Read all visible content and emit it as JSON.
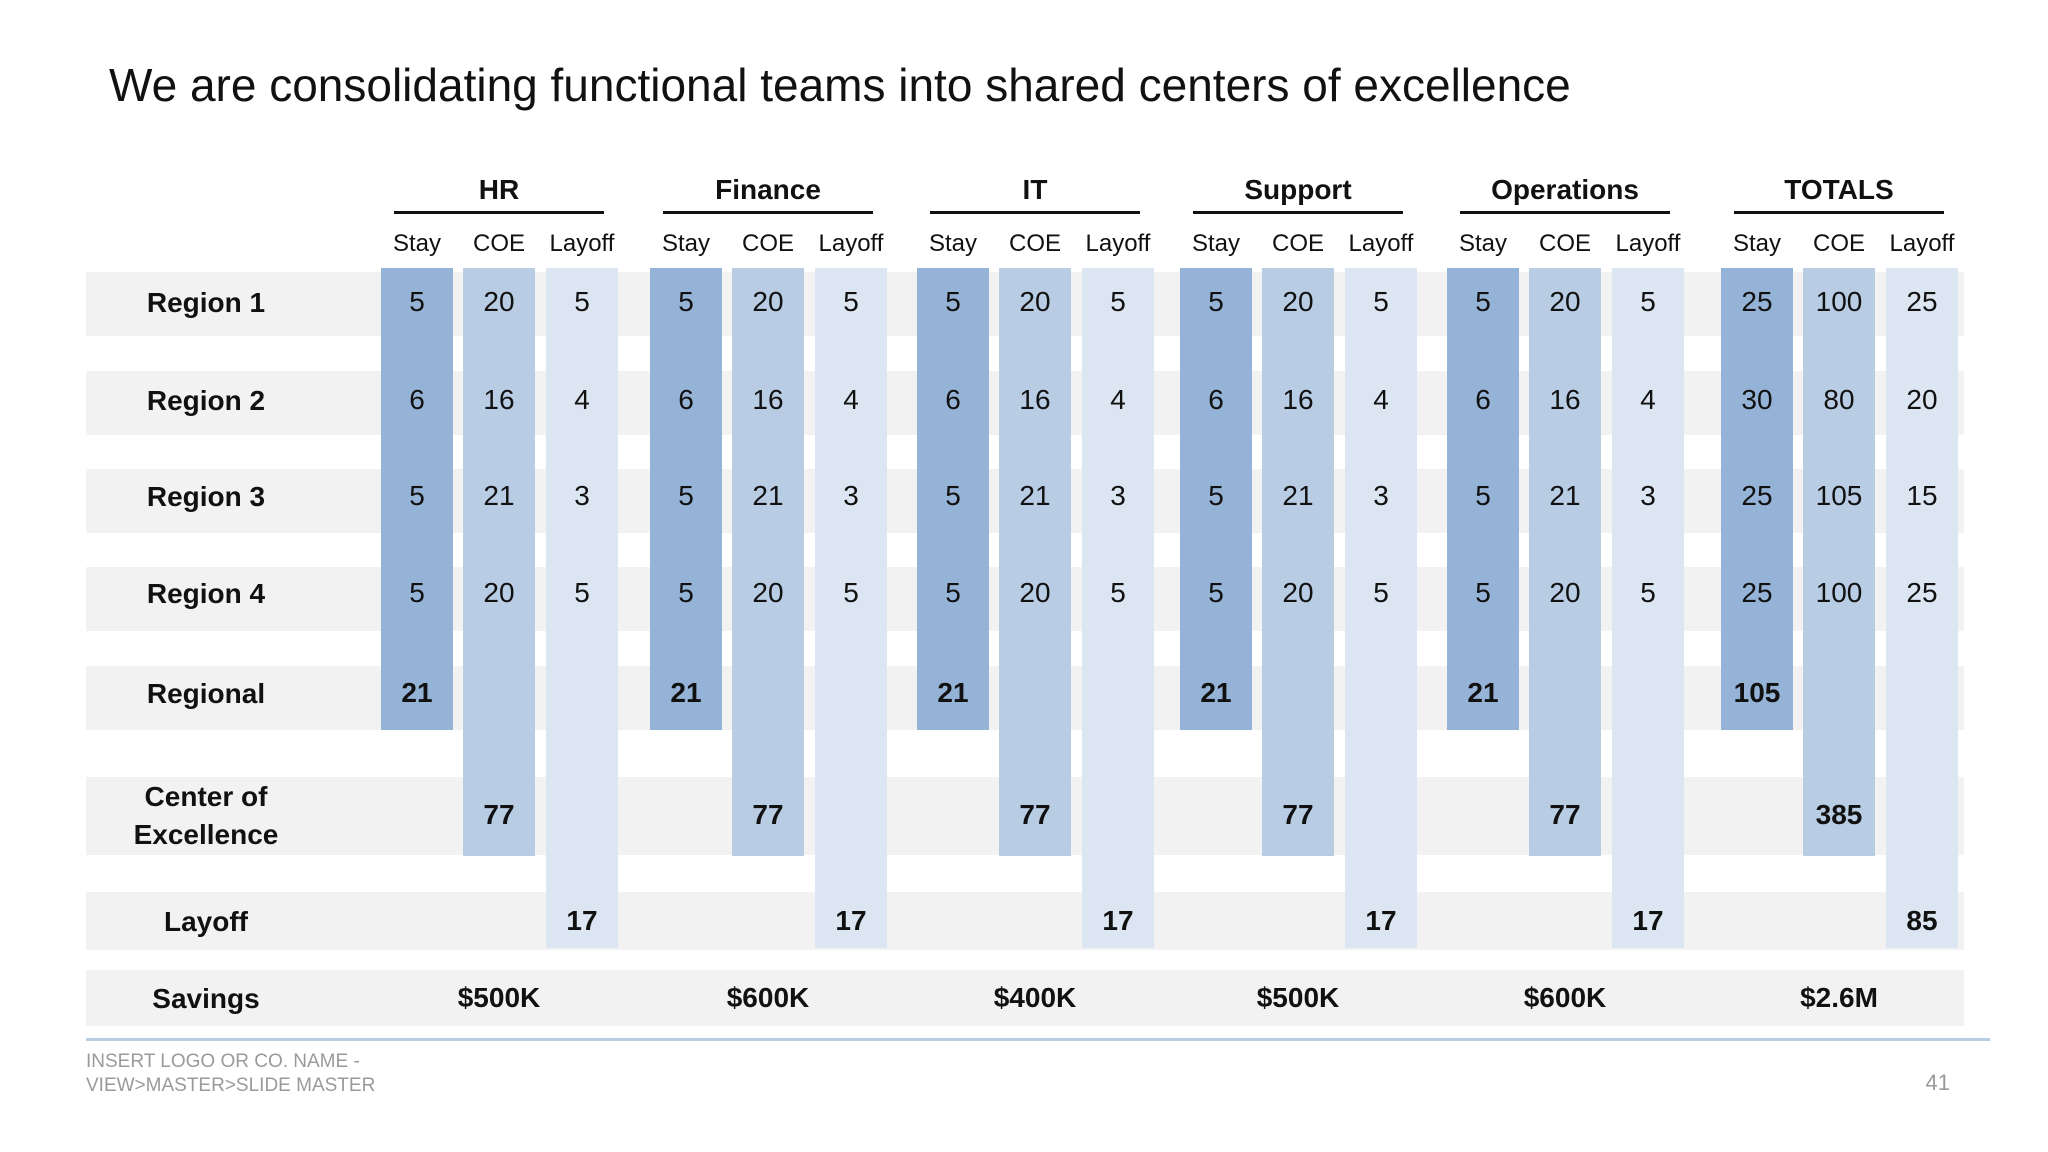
{
  "title": "We are consolidating functional teams into shared centers of excellence",
  "subheaders": [
    "Stay",
    "COE",
    "Layoff"
  ],
  "rows": [
    "Region 1",
    "Region 2",
    "Region 3",
    "Region 4",
    "Regional",
    "Center of Excellence",
    "Layoff"
  ],
  "savings_label": "Savings",
  "groups": [
    {
      "name": "HR",
      "stay": [
        "5",
        "6",
        "5",
        "5",
        "21"
      ],
      "coe": [
        "20",
        "16",
        "21",
        "20",
        "77"
      ],
      "layoff": [
        "5",
        "4",
        "3",
        "5",
        "17"
      ],
      "savings": "$500K"
    },
    {
      "name": "Finance",
      "stay": [
        "5",
        "6",
        "5",
        "5",
        "21"
      ],
      "coe": [
        "20",
        "16",
        "21",
        "20",
        "77"
      ],
      "layoff": [
        "5",
        "4",
        "3",
        "5",
        "17"
      ],
      "savings": "$600K"
    },
    {
      "name": "IT",
      "stay": [
        "5",
        "6",
        "5",
        "5",
        "21"
      ],
      "coe": [
        "20",
        "16",
        "21",
        "20",
        "77"
      ],
      "layoff": [
        "5",
        "4",
        "3",
        "5",
        "17"
      ],
      "savings": "$400K"
    },
    {
      "name": "Support",
      "stay": [
        "5",
        "6",
        "5",
        "5",
        "21"
      ],
      "coe": [
        "20",
        "16",
        "21",
        "20",
        "77"
      ],
      "layoff": [
        "5",
        "4",
        "3",
        "5",
        "17"
      ],
      "savings": "$500K"
    },
    {
      "name": "Operations",
      "stay": [
        "5",
        "6",
        "5",
        "5",
        "21"
      ],
      "coe": [
        "20",
        "16",
        "21",
        "20",
        "77"
      ],
      "layoff": [
        "5",
        "4",
        "3",
        "5",
        "17"
      ],
      "savings": "$600K"
    },
    {
      "name": "TOTALS",
      "stay": [
        "25",
        "30",
        "25",
        "25",
        "105"
      ],
      "coe": [
        "100",
        "80",
        "105",
        "100",
        "385"
      ],
      "layoff": [
        "25",
        "20",
        "15",
        "25",
        "85"
      ],
      "savings": "$2.6M"
    }
  ],
  "footer": {
    "line1": "INSERT LOGO OR CO. NAME -",
    "line2": "VIEW>MASTER>SLIDE MASTER",
    "page_number": "41"
  },
  "colors": {
    "stay": "#95b3d7",
    "coe": "#b8cce4",
    "layoff": "#dce6f2",
    "band": "#f2f2f2"
  }
}
